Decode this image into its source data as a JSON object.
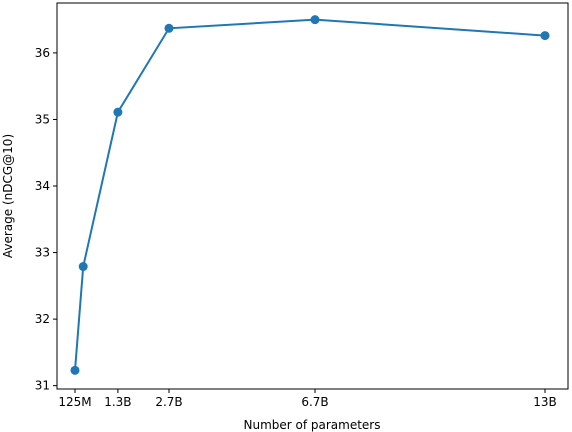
{
  "chart_data": {
    "type": "line",
    "xlabel": "Number of parameters",
    "ylabel": "Average (nDCG@10)",
    "x": [
      0.125,
      0.35,
      1.3,
      2.7,
      6.7,
      13
    ],
    "series": [
      {
        "color": "#1f77b4",
        "values": [
          31.23,
          32.79,
          35.11,
          36.37,
          36.5,
          36.26
        ]
      }
    ],
    "xlim": [
      -0.368,
      13.63
    ],
    "ylim": [
      30.95,
      36.75
    ],
    "xticks": [
      {
        "value": 0.125,
        "label": "125M"
      },
      {
        "value": 1.3,
        "label": "1.3B"
      },
      {
        "value": 2.7,
        "label": "2.7B"
      },
      {
        "value": 6.7,
        "label": "6.7B"
      },
      {
        "value": 13,
        "label": "13B"
      }
    ],
    "yticks": [
      31,
      32,
      33,
      34,
      35,
      36
    ]
  }
}
